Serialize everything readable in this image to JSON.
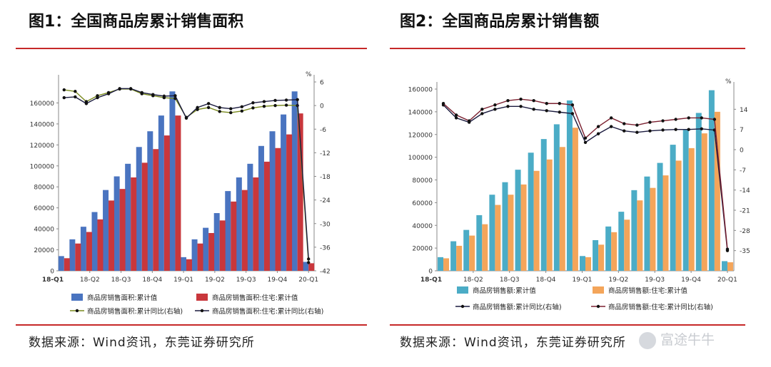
{
  "charts": [
    {
      "title": "图1：全国商品房累计销售面积",
      "source": "数据来源：Wind资讯，东莞证券研究所",
      "colors": {
        "bar1": "#4a74c0",
        "bar2": "#c9373c",
        "line1": "#7a8a1e",
        "line2": "#1a1a3e"
      },
      "chart_data": {
        "type": "bar",
        "x_ticks": [
          "18-Q1",
          "18-Q2",
          "18-Q3",
          "18-Q4",
          "19-Q1",
          "19-Q2",
          "19-Q3",
          "19-Q4",
          "20-Q1"
        ],
        "ylim": [
          0,
          180000
        ],
        "yticks": [
          0,
          20000,
          40000,
          60000,
          80000,
          100000,
          120000,
          140000,
          160000
        ],
        "y2lim": [
          -42,
          6
        ],
        "y2ticks": [
          6,
          0,
          -6,
          -12,
          -18,
          -24,
          -30,
          -36,
          -42
        ],
        "y2unit": "%",
        "series": [
          {
            "name": "商品房销售面积:累计值",
            "type": "bar",
            "values": [
              14000,
              30000,
              42000,
              56000,
              77000,
              90000,
              102000,
              118000,
              133000,
              148000,
              171000,
              13000,
              30000,
              41000,
              55000,
              76000,
              89000,
              102000,
              119000,
              133000,
              149000,
              171000,
              8500
            ]
          },
          {
            "name": "商品房销售面积:住宅:累计值",
            "type": "bar",
            "values": [
              12000,
              26000,
              37000,
              49000,
              67000,
              78000,
              89000,
              103000,
              116000,
              129000,
              148000,
              11000,
              26000,
              36000,
              48000,
              66000,
              77000,
              89000,
              104000,
              117000,
              130000,
              150000,
              7200
            ]
          },
          {
            "name": "商品房销售面积:累计同比(右轴)",
            "type": "line",
            "values": [
              4.0,
              3.6,
              1.0,
              2.5,
              3.3,
              4.2,
              4.2,
              3.0,
              2.5,
              2.0,
              1.8,
              -3.0,
              -1.0,
              -0.5,
              -1.5,
              -1.8,
              -1.4,
              -0.6,
              -0.2,
              0.0,
              0.1,
              0.0,
              -39.9
            ]
          },
          {
            "name": "商品房销售面积:住宅:累计同比(右轴)",
            "type": "line",
            "values": [
              2.0,
              2.2,
              0.5,
              2.0,
              3.0,
              4.3,
              4.3,
              3.3,
              2.8,
              2.4,
              2.5,
              -3.2,
              -0.5,
              0.5,
              -0.5,
              -0.8,
              -0.3,
              0.7,
              1.0,
              1.3,
              1.4,
              1.5,
              -39.0
            ]
          }
        ]
      }
    },
    {
      "title": "图2：全国商品房累计销售额",
      "source": "数据来源：Wind资讯，东莞证券研究所",
      "colors": {
        "bar1": "#4bacc6",
        "bar2": "#f4a55a",
        "line1": "#1a1a3e",
        "line2": "#7b2030"
      },
      "chart_data": {
        "type": "bar",
        "x_ticks": [
          "18-Q1",
          "18-Q2",
          "18-Q3",
          "18-Q4",
          "19-Q1",
          "19-Q2",
          "19-Q3",
          "19-Q4",
          "20-Q1"
        ],
        "ylim": [
          0,
          160000
        ],
        "yticks": [
          0,
          20000,
          40000,
          60000,
          80000,
          100000,
          120000,
          140000,
          160000
        ],
        "y2lim": [
          -42,
          21
        ],
        "y2ticks": [
          14,
          7,
          0,
          -7,
          -14,
          -21,
          -28,
          -35
        ],
        "y2unit": "%",
        "series": [
          {
            "name": "商品房销售额:累计值",
            "type": "bar",
            "values": [
              12000,
              26000,
              36000,
              49000,
              67000,
              78000,
              89000,
              104000,
              116000,
              129000,
              150000,
              13000,
              27000,
              39000,
              52000,
              71000,
              83000,
              95000,
              111000,
              124000,
              139000,
              159000,
              8500
            ]
          },
          {
            "name": "商品房销售额:住宅:累计值",
            "type": "bar",
            "values": [
              11000,
              22000,
              31000,
              41000,
              58000,
              67000,
              76000,
              88000,
              98000,
              109000,
              126000,
              12000,
              23000,
              34000,
              45000,
              62000,
              73000,
              84000,
              97000,
              108000,
              121000,
              140000,
              7500
            ]
          },
          {
            "name": "商品房销售额:累计同比(右轴)",
            "type": "line",
            "values": [
              15.5,
              11.0,
              9.5,
              12.5,
              14.0,
              15.0,
              15.0,
              14.0,
              13.5,
              13.0,
              12.5,
              2.5,
              5.5,
              8.0,
              6.5,
              6.0,
              6.5,
              6.8,
              7.0,
              7.0,
              7.2,
              6.8,
              -35.0
            ]
          },
          {
            "name": "商品房销售额:住宅:累计同比(右轴)",
            "type": "line",
            "values": [
              16.0,
              12.0,
              10.0,
              14.0,
              15.5,
              17.0,
              17.5,
              17.0,
              16.0,
              16.0,
              15.5,
              4.0,
              8.0,
              11.0,
              9.0,
              8.5,
              9.5,
              10.0,
              10.5,
              11.0,
              11.0,
              10.5,
              -34.5
            ]
          }
        ]
      }
    }
  ],
  "watermark": {
    "text": "富途牛牛",
    "icon": "futu-logo-icon"
  }
}
